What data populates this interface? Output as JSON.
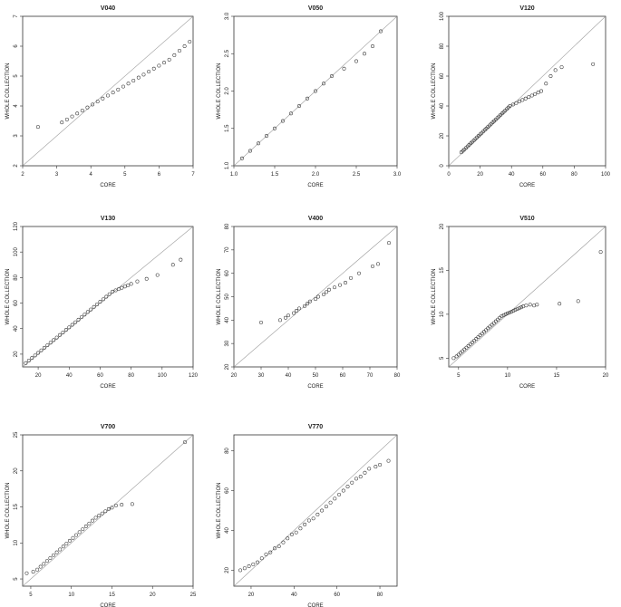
{
  "figure": {
    "background": "#ffffff",
    "point_color": "#333333",
    "ref_line_color": "#999999"
  },
  "chart_data": [
    {
      "type": "scatter",
      "title": "V040",
      "xlabel": "CORE",
      "ylabel": "WHOLE COLLECTION",
      "xlim": [
        2,
        7
      ],
      "ylim": [
        2,
        7
      ],
      "xticks": [
        2,
        3,
        4,
        5,
        6,
        7
      ],
      "yticks": [
        2,
        3,
        4,
        5,
        6,
        7
      ],
      "reference_line": "y=x",
      "points": [
        [
          2.45,
          3.3
        ],
        [
          3.15,
          3.45
        ],
        [
          3.3,
          3.55
        ],
        [
          3.45,
          3.65
        ],
        [
          3.6,
          3.75
        ],
        [
          3.75,
          3.85
        ],
        [
          3.9,
          3.95
        ],
        [
          4.05,
          4.05
        ],
        [
          4.2,
          4.15
        ],
        [
          4.35,
          4.25
        ],
        [
          4.5,
          4.35
        ],
        [
          4.65,
          4.45
        ],
        [
          4.8,
          4.55
        ],
        [
          4.95,
          4.65
        ],
        [
          5.1,
          4.75
        ],
        [
          5.25,
          4.85
        ],
        [
          5.4,
          4.95
        ],
        [
          5.55,
          5.05
        ],
        [
          5.7,
          5.15
        ],
        [
          5.85,
          5.25
        ],
        [
          6.0,
          5.35
        ],
        [
          6.15,
          5.45
        ],
        [
          6.3,
          5.55
        ],
        [
          6.45,
          5.7
        ],
        [
          6.6,
          5.85
        ],
        [
          6.75,
          6.0
        ],
        [
          6.9,
          6.15
        ],
        [
          7.05,
          6.25
        ],
        [
          7.2,
          6.4
        ]
      ]
    },
    {
      "type": "scatter",
      "title": "V050",
      "xlabel": "CORE",
      "ylabel": "WHOLE COLLECTION",
      "xlim": [
        1,
        3
      ],
      "ylim": [
        1,
        3
      ],
      "xticks": [
        1.0,
        1.5,
        2.0,
        2.5,
        3.0
      ],
      "yticks": [
        1.0,
        1.5,
        2.0,
        2.5,
        3.0
      ],
      "xticklabels": [
        "1.0",
        "1.5",
        "2.0",
        "2.5",
        "3.0"
      ],
      "yticklabels": [
        "1.0",
        "1.5",
        "2.0",
        "2.5",
        "3.0"
      ],
      "reference_line": "y=x",
      "points": [
        [
          1.1,
          1.1
        ],
        [
          1.2,
          1.2
        ],
        [
          1.3,
          1.3
        ],
        [
          1.4,
          1.4
        ],
        [
          1.5,
          1.5
        ],
        [
          1.6,
          1.6
        ],
        [
          1.7,
          1.7
        ],
        [
          1.8,
          1.8
        ],
        [
          1.9,
          1.9
        ],
        [
          2.0,
          2.0
        ],
        [
          2.1,
          2.1
        ],
        [
          2.2,
          2.2
        ],
        [
          2.35,
          2.3
        ],
        [
          2.5,
          2.4
        ],
        [
          2.6,
          2.5
        ],
        [
          2.7,
          2.6
        ],
        [
          2.8,
          2.8
        ]
      ]
    },
    {
      "type": "scatter",
      "title": "V120",
      "xlabel": "CORE",
      "ylabel": "WHOLE COLLECTION",
      "xlim": [
        0,
        100
      ],
      "ylim": [
        0,
        100
      ],
      "xticks": [
        0,
        20,
        40,
        60,
        80,
        100
      ],
      "yticks": [
        0,
        20,
        40,
        60,
        80,
        100
      ],
      "reference_line": "y=x",
      "points": [
        [
          8,
          9
        ],
        [
          9,
          10
        ],
        [
          10,
          11
        ],
        [
          11,
          12
        ],
        [
          12,
          13
        ],
        [
          13,
          14
        ],
        [
          14,
          15
        ],
        [
          15,
          16
        ],
        [
          16,
          17
        ],
        [
          17,
          18
        ],
        [
          18,
          19
        ],
        [
          19,
          20
        ],
        [
          20,
          21
        ],
        [
          21,
          22
        ],
        [
          22,
          23
        ],
        [
          23,
          24
        ],
        [
          24,
          25
        ],
        [
          25,
          26
        ],
        [
          26,
          27
        ],
        [
          27,
          28
        ],
        [
          28,
          29
        ],
        [
          29,
          30
        ],
        [
          30,
          31
        ],
        [
          31,
          32
        ],
        [
          32,
          33
        ],
        [
          33,
          34
        ],
        [
          34,
          35
        ],
        [
          35,
          36
        ],
        [
          36,
          37
        ],
        [
          37,
          38
        ],
        [
          38,
          39
        ],
        [
          39,
          40
        ],
        [
          41,
          41
        ],
        [
          43,
          42
        ],
        [
          45,
          43
        ],
        [
          47,
          44
        ],
        [
          49,
          45
        ],
        [
          51,
          46
        ],
        [
          53,
          47
        ],
        [
          55,
          48
        ],
        [
          57,
          49
        ],
        [
          59,
          50
        ],
        [
          62,
          55
        ],
        [
          65,
          60
        ],
        [
          68,
          64
        ],
        [
          72,
          66
        ],
        [
          92,
          68
        ]
      ]
    },
    {
      "type": "scatter",
      "title": "V130",
      "xlabel": "CORE",
      "ylabel": "WHOLE COLLECTION",
      "xlim": [
        10,
        120
      ],
      "ylim": [
        10,
        120
      ],
      "xticks": [
        20,
        40,
        60,
        80,
        100,
        120
      ],
      "yticks": [
        20,
        40,
        60,
        80,
        100,
        120
      ],
      "reference_line": "y=x",
      "points": [
        [
          12,
          13
        ],
        [
          14,
          15
        ],
        [
          16,
          17
        ],
        [
          18,
          19
        ],
        [
          20,
          21
        ],
        [
          22,
          23
        ],
        [
          24,
          25
        ],
        [
          26,
          27
        ],
        [
          28,
          29
        ],
        [
          30,
          31
        ],
        [
          32,
          33
        ],
        [
          34,
          35
        ],
        [
          36,
          37
        ],
        [
          38,
          39
        ],
        [
          40,
          41
        ],
        [
          42,
          43
        ],
        [
          44,
          45
        ],
        [
          46,
          47
        ],
        [
          48,
          49
        ],
        [
          50,
          51
        ],
        [
          52,
          53
        ],
        [
          54,
          55
        ],
        [
          56,
          57
        ],
        [
          58,
          59
        ],
        [
          60,
          61
        ],
        [
          62,
          63
        ],
        [
          64,
          65
        ],
        [
          66,
          67
        ],
        [
          68,
          69
        ],
        [
          70,
          70
        ],
        [
          72,
          71
        ],
        [
          74,
          72
        ],
        [
          76,
          73
        ],
        [
          78,
          74
        ],
        [
          80,
          75
        ],
        [
          84,
          77
        ],
        [
          90,
          79
        ],
        [
          97,
          82
        ],
        [
          107,
          90
        ],
        [
          112,
          94
        ]
      ]
    },
    {
      "type": "scatter",
      "title": "V400",
      "xlabel": "CORE",
      "ylabel": "WHOLE COLLECTION",
      "xlim": [
        20,
        80
      ],
      "ylim": [
        20,
        80
      ],
      "xticks": [
        20,
        30,
        40,
        50,
        60,
        70,
        80
      ],
      "yticks": [
        20,
        30,
        40,
        50,
        60,
        70,
        80
      ],
      "reference_line": "y=x",
      "points": [
        [
          30,
          39
        ],
        [
          37,
          40
        ],
        [
          39,
          41
        ],
        [
          40,
          42
        ],
        [
          42,
          43
        ],
        [
          43,
          44
        ],
        [
          44,
          45
        ],
        [
          46,
          46
        ],
        [
          47,
          47
        ],
        [
          48,
          48
        ],
        [
          50,
          49
        ],
        [
          51,
          50
        ],
        [
          53,
          51
        ],
        [
          54,
          52
        ],
        [
          55,
          53
        ],
        [
          57,
          54
        ],
        [
          59,
          55
        ],
        [
          61,
          56
        ],
        [
          63,
          58
        ],
        [
          66,
          60
        ],
        [
          71,
          63
        ],
        [
          73,
          64
        ],
        [
          77,
          73
        ]
      ]
    },
    {
      "type": "scatter",
      "title": "V510",
      "xlabel": "CORE",
      "ylabel": "WHOLE COLLECTION",
      "xlim": [
        4,
        20
      ],
      "ylim": [
        4,
        20
      ],
      "xticks": [
        5,
        10,
        15,
        20
      ],
      "yticks": [
        5,
        10,
        15,
        20
      ],
      "reference_line": "y=x",
      "points": [
        [
          4.5,
          5.0
        ],
        [
          4.8,
          5.2
        ],
        [
          5.0,
          5.4
        ],
        [
          5.2,
          5.6
        ],
        [
          5.4,
          5.8
        ],
        [
          5.6,
          6.0
        ],
        [
          5.8,
          6.2
        ],
        [
          6.0,
          6.4
        ],
        [
          6.2,
          6.6
        ],
        [
          6.4,
          6.8
        ],
        [
          6.6,
          7.0
        ],
        [
          6.8,
          7.2
        ],
        [
          7.0,
          7.4
        ],
        [
          7.2,
          7.6
        ],
        [
          7.4,
          7.8
        ],
        [
          7.6,
          8.0
        ],
        [
          7.8,
          8.2
        ],
        [
          8.0,
          8.4
        ],
        [
          8.2,
          8.6
        ],
        [
          8.4,
          8.8
        ],
        [
          8.6,
          9.0
        ],
        [
          8.8,
          9.2
        ],
        [
          9.0,
          9.4
        ],
        [
          9.2,
          9.6
        ],
        [
          9.4,
          9.8
        ],
        [
          9.6,
          9.9
        ],
        [
          9.8,
          10.0
        ],
        [
          10.0,
          10.1
        ],
        [
          10.2,
          10.2
        ],
        [
          10.4,
          10.3
        ],
        [
          10.6,
          10.4
        ],
        [
          10.8,
          10.5
        ],
        [
          11.0,
          10.6
        ],
        [
          11.2,
          10.7
        ],
        [
          11.4,
          10.8
        ],
        [
          11.6,
          10.9
        ],
        [
          11.9,
          11.0
        ],
        [
          12.3,
          11.1
        ],
        [
          12.7,
          11.0
        ],
        [
          13.0,
          11.1
        ],
        [
          15.3,
          11.2
        ],
        [
          17.2,
          11.5
        ],
        [
          19.5,
          17.1
        ]
      ]
    },
    {
      "type": "scatter",
      "title": "V700",
      "xlabel": "CORE",
      "ylabel": "WHOLE COLLECTION",
      "xlim": [
        4,
        25
      ],
      "ylim": [
        4,
        25
      ],
      "xticks": [
        5,
        10,
        15,
        20,
        25
      ],
      "yticks": [
        5,
        10,
        15,
        20,
        25
      ],
      "reference_line": "y=x",
      "points": [
        [
          4.5,
          5.8
        ],
        [
          5.3,
          6.0
        ],
        [
          5.8,
          6.3
        ],
        [
          6.2,
          6.7
        ],
        [
          6.6,
          7.1
        ],
        [
          7.0,
          7.5
        ],
        [
          7.4,
          7.9
        ],
        [
          7.8,
          8.3
        ],
        [
          8.2,
          8.7
        ],
        [
          8.6,
          9.1
        ],
        [
          9.0,
          9.5
        ],
        [
          9.4,
          9.9
        ],
        [
          9.8,
          10.3
        ],
        [
          10.2,
          10.7
        ],
        [
          10.6,
          11.1
        ],
        [
          11.0,
          11.5
        ],
        [
          11.4,
          11.9
        ],
        [
          11.8,
          12.3
        ],
        [
          12.2,
          12.7
        ],
        [
          12.6,
          13.1
        ],
        [
          13.0,
          13.5
        ],
        [
          13.4,
          13.8
        ],
        [
          13.8,
          14.1
        ],
        [
          14.2,
          14.4
        ],
        [
          14.6,
          14.7
        ],
        [
          15.0,
          14.9
        ],
        [
          15.5,
          15.2
        ],
        [
          16.2,
          15.3
        ],
        [
          17.5,
          15.4
        ],
        [
          24.0,
          24.0
        ]
      ]
    },
    {
      "type": "scatter",
      "title": "V770",
      "xlabel": "CORE",
      "ylabel": "WHOLE COLLECTION",
      "xlim": [
        12,
        88
      ],
      "ylim": [
        12,
        88
      ],
      "xticks": [
        20,
        40,
        60,
        80
      ],
      "yticks": [
        20,
        40,
        60,
        80
      ],
      "reference_line": "y=x",
      "points": [
        [
          15,
          20
        ],
        [
          17,
          21
        ],
        [
          19,
          22
        ],
        [
          21,
          23
        ],
        [
          23,
          24
        ],
        [
          25,
          26
        ],
        [
          27,
          28
        ],
        [
          29,
          29
        ],
        [
          31,
          31
        ],
        [
          33,
          32
        ],
        [
          35,
          34
        ],
        [
          37,
          36
        ],
        [
          39,
          38
        ],
        [
          41,
          39
        ],
        [
          43,
          41
        ],
        [
          45,
          43
        ],
        [
          47,
          45
        ],
        [
          49,
          46
        ],
        [
          51,
          48
        ],
        [
          53,
          50
        ],
        [
          55,
          52
        ],
        [
          57,
          54
        ],
        [
          59,
          56
        ],
        [
          61,
          58
        ],
        [
          63,
          60
        ],
        [
          65,
          62
        ],
        [
          67,
          64
        ],
        [
          69,
          66
        ],
        [
          71,
          67
        ],
        [
          73,
          69
        ],
        [
          75,
          71
        ],
        [
          78,
          72
        ],
        [
          80,
          73
        ],
        [
          84,
          75
        ]
      ]
    }
  ]
}
